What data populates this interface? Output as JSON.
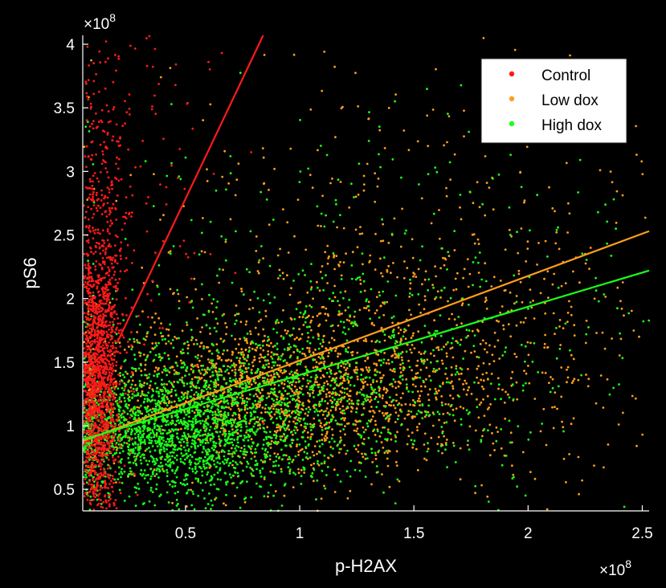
{
  "chart_data": {
    "type": "scatter",
    "xlabel": "p-H2AX",
    "ylabel": "pS6",
    "x_exponent_label": "×10",
    "x_exponent": "8",
    "y_exponent_label": "×10",
    "y_exponent": "8",
    "x_scale": 100000000,
    "y_scale": 100000000,
    "xlim": [
      0.05,
      2.53
    ],
    "ylim": [
      0.33,
      4.07
    ],
    "x_ticks": [
      0.5,
      1,
      1.5,
      2,
      2.5
    ],
    "x_tick_labels": [
      "0.5",
      "1",
      "1.5",
      "2",
      "2.5"
    ],
    "y_ticks": [
      0.5,
      1,
      1.5,
      2,
      2.5,
      3,
      3.5,
      4
    ],
    "y_tick_labels": [
      "0.5",
      "1",
      "1.5",
      "2",
      "2.5",
      "3",
      "3.5",
      "4"
    ],
    "grid": false,
    "legend_position": "top-right",
    "series": [
      {
        "name": "Control",
        "color": "#ff1a1a",
        "fit_line": {
          "x": [
            0.2,
            0.84
          ],
          "y": [
            1.65,
            4.07
          ]
        },
        "clusters": [
          {
            "n": 1400,
            "cx": 0.12,
            "cy": 1.35,
            "sx": 0.045,
            "sy": 0.55
          },
          {
            "n": 350,
            "cx": 0.14,
            "cy": 2.6,
            "sx": 0.06,
            "sy": 0.75
          },
          {
            "n": 80,
            "cx": 0.35,
            "cy": 2.9,
            "sx": 0.18,
            "sy": 0.8
          }
        ]
      },
      {
        "name": "Low dox",
        "color": "#ff9e1a",
        "fit_line": {
          "x": [
            0.05,
            2.53
          ],
          "y": [
            0.88,
            2.53
          ]
        },
        "clusters": [
          {
            "n": 1500,
            "cx": 0.9,
            "cy": 1.25,
            "sx": 0.45,
            "sy": 0.3
          },
          {
            "n": 700,
            "cx": 1.4,
            "cy": 1.6,
            "sx": 0.6,
            "sy": 0.55
          },
          {
            "n": 250,
            "cx": 1.5,
            "cy": 2.6,
            "sx": 0.7,
            "sy": 0.8
          }
        ]
      },
      {
        "name": "High dox",
        "color": "#1aff1a",
        "fit_line": {
          "x": [
            0.05,
            2.53
          ],
          "y": [
            0.89,
            2.22
          ]
        },
        "clusters": [
          {
            "n": 1800,
            "cx": 0.45,
            "cy": 0.95,
            "sx": 0.28,
            "sy": 0.25
          },
          {
            "n": 900,
            "cx": 1.0,
            "cy": 1.3,
            "sx": 0.5,
            "sy": 0.4
          },
          {
            "n": 250,
            "cx": 1.3,
            "cy": 2.2,
            "sx": 0.7,
            "sy": 0.8
          }
        ]
      }
    ]
  }
}
